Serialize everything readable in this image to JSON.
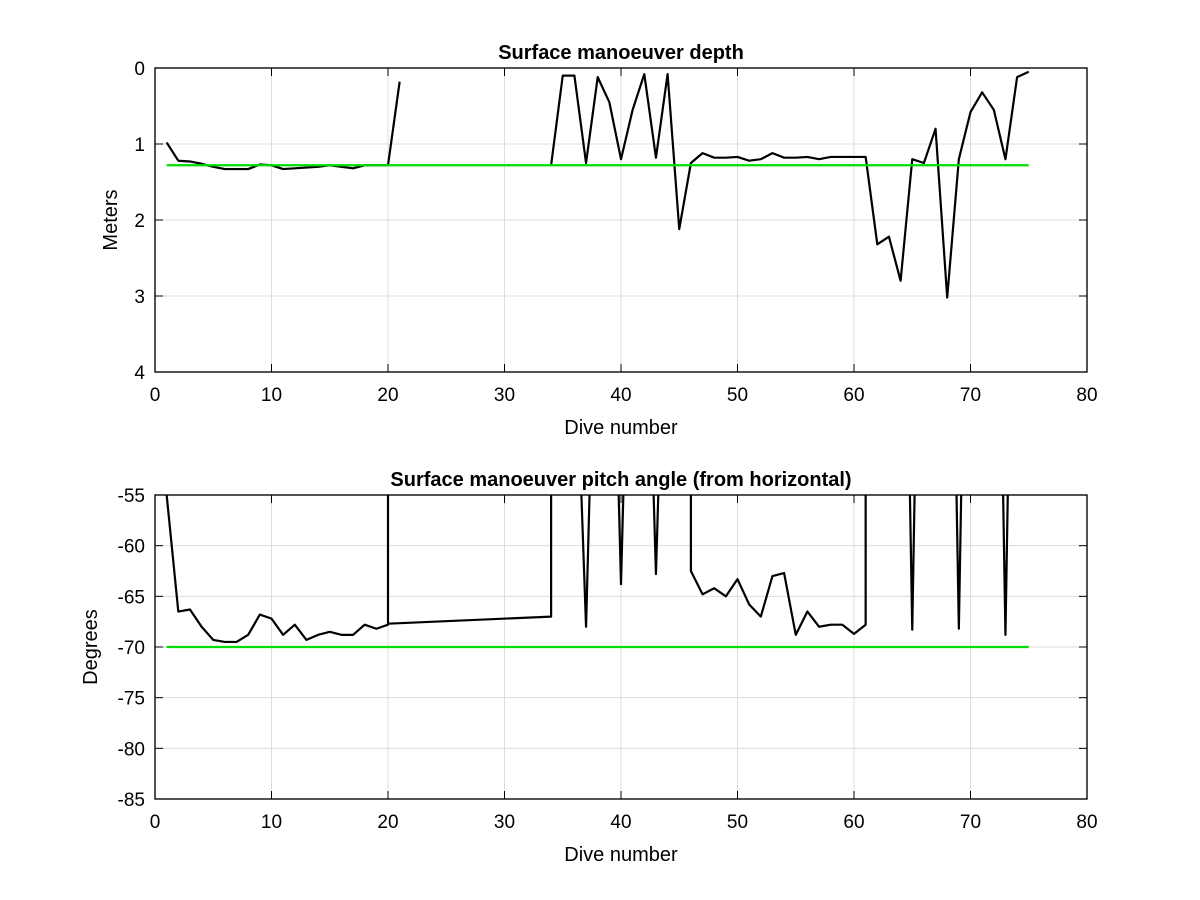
{
  "chart_data": [
    {
      "type": "line",
      "title": "Surface manoeuver depth",
      "xlabel": "Dive number",
      "ylabel": "Meters",
      "xlim": [
        0,
        80
      ],
      "ylim": [
        0,
        4
      ],
      "y_reversed": true,
      "xticks": [
        "0",
        "10",
        "20",
        "30",
        "40",
        "50",
        "60",
        "70",
        "80"
      ],
      "yticks": [
        "0",
        "1",
        "2",
        "3",
        "4"
      ],
      "grid": true,
      "series": [
        {
          "color": "#000000",
          "segments": [
            {
              "x": [
                1,
                2,
                3,
                4,
                5,
                6,
                7,
                8,
                9,
                10,
                11,
                12,
                13,
                14,
                15,
                16,
                17,
                18,
                19,
                20
              ],
              "y": [
                0.98,
                1.22,
                1.23,
                1.26,
                1.3,
                1.33,
                1.33,
                1.33,
                1.27,
                1.28,
                1.33,
                1.32,
                1.31,
                1.3,
                1.28,
                1.3,
                1.32,
                1.28,
                1.28,
                1.28
              ]
            },
            {
              "x": [
                20,
                21
              ],
              "y": [
                1.28,
                0.18
              ]
            },
            {
              "x": [
                34,
                35,
                36,
                37,
                38,
                39,
                40,
                41,
                42,
                43,
                44,
                45,
                46,
                47,
                48,
                49,
                50,
                51,
                52,
                53,
                54,
                55,
                56,
                57,
                58,
                59,
                60,
                61,
                62,
                63,
                64,
                65,
                66,
                67,
                68,
                69,
                70,
                71,
                72,
                73,
                74,
                75
              ],
              "y": [
                1.28,
                0.1,
                0.1,
                1.25,
                0.12,
                0.45,
                1.2,
                0.55,
                0.08,
                1.18,
                0.08,
                2.12,
                1.25,
                1.12,
                1.18,
                1.18,
                1.17,
                1.22,
                1.2,
                1.12,
                1.18,
                1.18,
                1.17,
                1.2,
                1.17,
                1.17,
                1.17,
                1.17,
                2.32,
                2.22,
                2.8,
                1.2,
                1.25,
                0.8,
                3.02,
                1.2,
                0.58,
                0.32,
                0.55,
                1.2,
                0.12,
                0.05
              ]
            }
          ]
        },
        {
          "color": "#00dd00",
          "segments": [
            {
              "x": [
                1,
                75
              ],
              "y": [
                1.28,
                1.28
              ]
            }
          ]
        }
      ]
    },
    {
      "type": "line",
      "title": "Surface manoeuver pitch angle (from horizontal)",
      "xlabel": "Dive number",
      "ylabel": "Degrees",
      "xlim": [
        0,
        80
      ],
      "ylim": [
        -85,
        -55
      ],
      "xticks": [
        "0",
        "10",
        "20",
        "30",
        "40",
        "50",
        "60",
        "70",
        "80"
      ],
      "yticks": [
        "-55",
        "-60",
        "-65",
        "-70",
        "-75",
        "-80",
        "-85"
      ],
      "grid": true,
      "series": [
        {
          "color": "#000000",
          "segments": [
            {
              "x": [
                1,
                2,
                3,
                4,
                5,
                6,
                7,
                8,
                9,
                10,
                11,
                12,
                13,
                14,
                15,
                16,
                17,
                18,
                19,
                20,
                20,
                20,
                34,
                34
              ],
              "y": [
                -55,
                -66.5,
                -66.3,
                -68.0,
                -69.3,
                -69.5,
                -69.5,
                -68.8,
                -66.8,
                -67.2,
                -68.8,
                -67.8,
                -69.3,
                -68.8,
                -68.5,
                -68.8,
                -68.8,
                -67.8,
                -68.2,
                -67.8,
                -55,
                -67.7,
                -67,
                -55
              ]
            },
            {
              "x": [
                36.6,
                37,
                37.3
              ],
              "y": [
                -55,
                -68,
                -55
              ]
            },
            {
              "x": [
                39.8,
                40,
                40.2
              ],
              "y": [
                -55,
                -63.8,
                -55
              ]
            },
            {
              "x": [
                42.8,
                43,
                43.2
              ],
              "y": [
                -55,
                -62.8,
                -55
              ]
            },
            {
              "x": [
                46,
                46,
                47,
                48,
                49,
                50,
                51,
                52,
                53,
                54,
                55,
                56,
                57,
                58,
                59,
                60,
                61,
                61
              ],
              "y": [
                -55,
                -62.5,
                -64.8,
                -64.2,
                -65,
                -63.3,
                -65.8,
                -67.0,
                -63.0,
                -62.7,
                -68.8,
                -66.5,
                -68,
                -67.8,
                -67.8,
                -68.7,
                -67.8,
                -55
              ]
            },
            {
              "x": [
                64.8,
                65,
                65.2
              ],
              "y": [
                -55,
                -68.3,
                -55
              ]
            },
            {
              "x": [
                68.8,
                69,
                69.2
              ],
              "y": [
                -55,
                -68.2,
                -55
              ]
            },
            {
              "x": [
                72.8,
                73,
                73.2
              ],
              "y": [
                -55,
                -68.8,
                -55
              ]
            }
          ]
        },
        {
          "color": "#00dd00",
          "segments": [
            {
              "x": [
                1,
                75
              ],
              "y": [
                -70,
                -70
              ]
            }
          ]
        }
      ]
    }
  ]
}
